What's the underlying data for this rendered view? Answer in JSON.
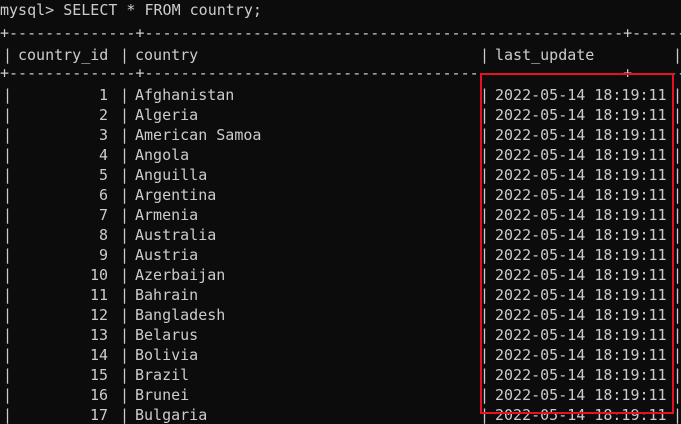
{
  "prompt": {
    "command": "mysql> SELECT * FROM country;"
  },
  "table": {
    "border_line": "+--------------+-----------------------------------------------------+---------------------+",
    "columns": [
      "country_id",
      "country",
      "last_update"
    ],
    "rows": [
      {
        "country_id": "1",
        "country": "Afghanistan",
        "last_update": "2022-05-14 18:19:11"
      },
      {
        "country_id": "2",
        "country": "Algeria",
        "last_update": "2022-05-14 18:19:11"
      },
      {
        "country_id": "3",
        "country": "American Samoa",
        "last_update": "2022-05-14 18:19:11"
      },
      {
        "country_id": "4",
        "country": "Angola",
        "last_update": "2022-05-14 18:19:11"
      },
      {
        "country_id": "5",
        "country": "Anguilla",
        "last_update": "2022-05-14 18:19:11"
      },
      {
        "country_id": "6",
        "country": "Argentina",
        "last_update": "2022-05-14 18:19:11"
      },
      {
        "country_id": "7",
        "country": "Armenia",
        "last_update": "2022-05-14 18:19:11"
      },
      {
        "country_id": "8",
        "country": "Australia",
        "last_update": "2022-05-14 18:19:11"
      },
      {
        "country_id": "9",
        "country": "Austria",
        "last_update": "2022-05-14 18:19:11"
      },
      {
        "country_id": "10",
        "country": "Azerbaijan",
        "last_update": "2022-05-14 18:19:11"
      },
      {
        "country_id": "11",
        "country": "Bahrain",
        "last_update": "2022-05-14 18:19:11"
      },
      {
        "country_id": "12",
        "country": "Bangladesh",
        "last_update": "2022-05-14 18:19:11"
      },
      {
        "country_id": "13",
        "country": "Belarus",
        "last_update": "2022-05-14 18:19:11"
      },
      {
        "country_id": "14",
        "country": "Bolivia",
        "last_update": "2022-05-14 18:19:11"
      },
      {
        "country_id": "15",
        "country": "Brazil",
        "last_update": "2022-05-14 18:19:11"
      },
      {
        "country_id": "16",
        "country": "Brunei",
        "last_update": "2022-05-14 18:19:11"
      },
      {
        "country_id": "17",
        "country": "Bulgaria",
        "last_update": "2022-05-14 18:19:11"
      }
    ]
  },
  "highlight": {
    "color": "#e81123"
  },
  "colors": {
    "background": "#0c0c0c",
    "text": "#cccccc"
  }
}
